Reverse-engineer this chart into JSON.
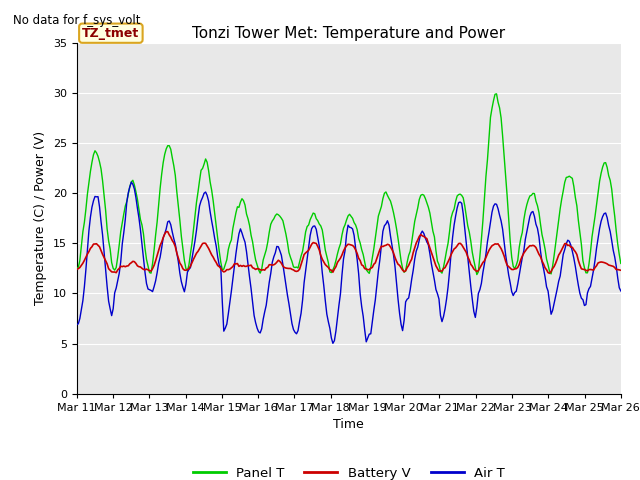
{
  "title": "Tonzi Tower Met: Temperature and Power",
  "top_left_text": "No data for f_sys_volt",
  "legend_label": "TZ_tmet",
  "xlabel": "Time",
  "ylabel": "Temperature (C) / Power (V)",
  "ylim": [
    0,
    35
  ],
  "yticks": [
    0,
    5,
    10,
    15,
    20,
    25,
    30,
    35
  ],
  "x_tick_labels": [
    "Mar 11",
    "Mar 12",
    "Mar 13",
    "Mar 14",
    "Mar 15",
    "Mar 16",
    "Mar 17",
    "Mar 18",
    "Mar 19",
    "Mar 20",
    "Mar 21",
    "Mar 22",
    "Mar 23",
    "Mar 24",
    "Mar 25",
    "Mar 26"
  ],
  "bg_color": "#e8e8e8",
  "panel_color": "#00cc00",
  "battery_color": "#cc0000",
  "air_color": "#0000cc",
  "title_fontsize": 11,
  "axis_fontsize": 9,
  "tick_fontsize": 8
}
